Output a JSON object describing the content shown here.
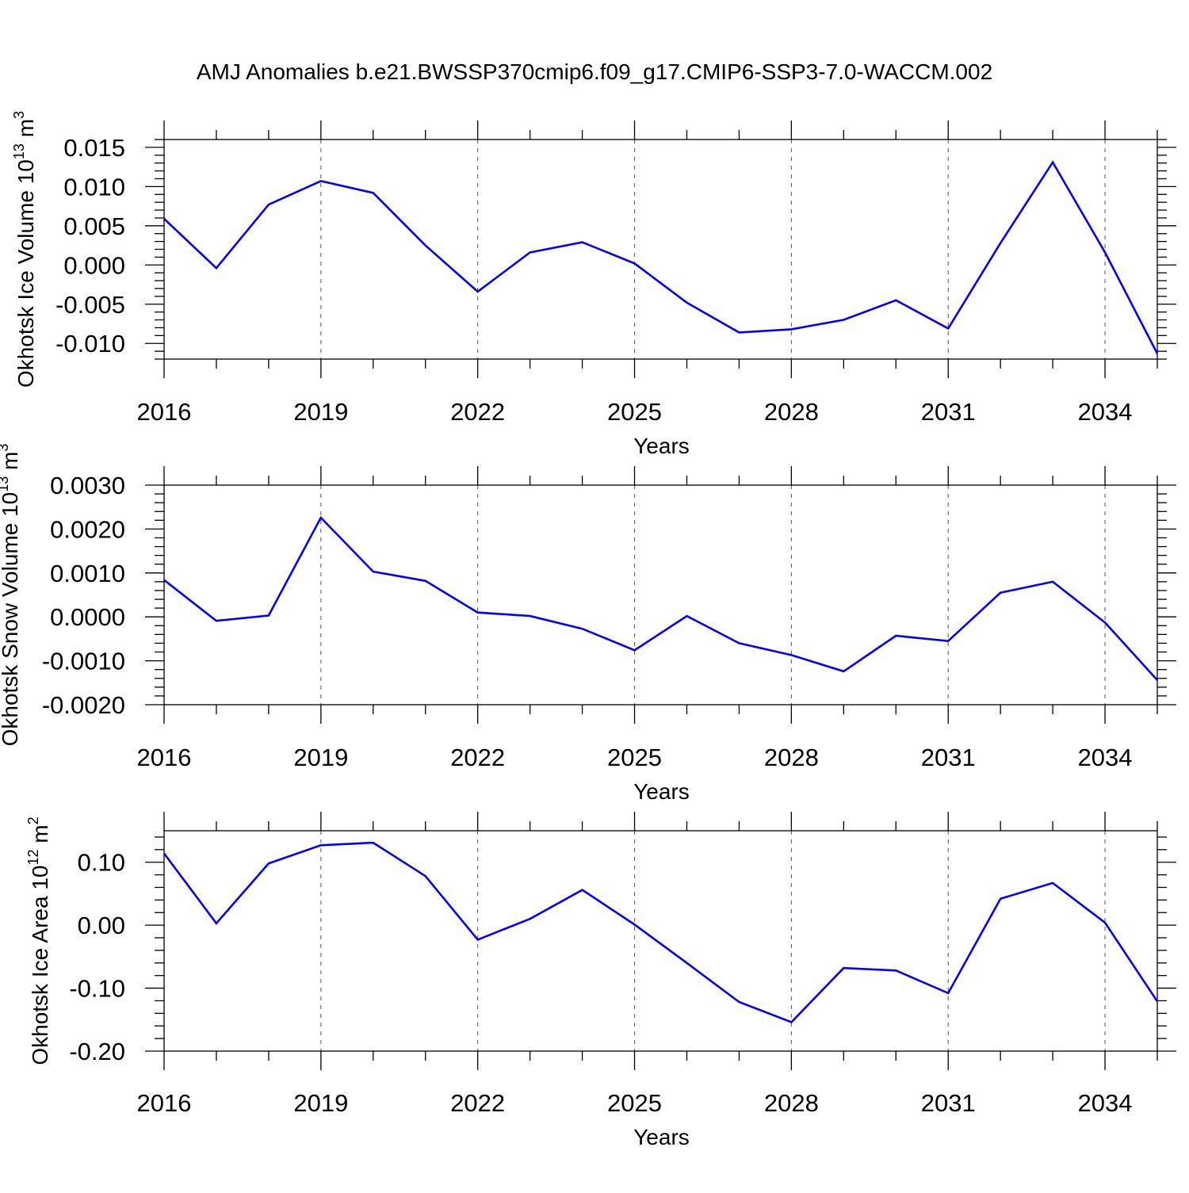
{
  "title": "AMJ Anomalies b.e21.BWSSP370cmip6.f09_g17.CMIP6-SSP3-7.0-WACCM.002",
  "colors": {
    "series": "#0000ff",
    "axis": "#000000",
    "grid": "#555555"
  },
  "chart_data": [
    {
      "type": "line",
      "title": "",
      "xlabel": "Years",
      "ylabel": {
        "prefix": "Okhotsk Ice Volume 10",
        "exponent": "13",
        "unit": " m",
        "unit_exponent": "3"
      },
      "xlim": [
        2016,
        2035
      ],
      "ylim": [
        -0.012,
        0.016
      ],
      "x_ticks": [
        2016,
        2019,
        2022,
        2025,
        2028,
        2031,
        2034
      ],
      "x_tick_labels": [
        "2016",
        "2019",
        "2022",
        "2025",
        "2028",
        "2031",
        "2034"
      ],
      "y_ticks": [
        0.015,
        0.01,
        0.005,
        0.0,
        -0.005,
        -0.01
      ],
      "y_tick_labels": [
        "0.015",
        "0.010",
        "0.005",
        "0.000",
        "-0.005",
        "-0.010"
      ],
      "grid": "dashed vertical at major x ticks",
      "series": [
        {
          "name": "Okhotsk Ice Volume",
          "x": [
            2016,
            2017,
            2018,
            2019,
            2020,
            2021,
            2022,
            2023,
            2024,
            2025,
            2026,
            2027,
            2028,
            2029,
            2030,
            2031,
            2032,
            2033,
            2034,
            2035
          ],
          "values": [
            0.0059,
            -0.0004,
            0.0077,
            0.0107,
            0.0092,
            0.0025,
            -0.0034,
            0.0016,
            0.0029,
            0.0002,
            -0.0048,
            -0.0086,
            -0.0082,
            -0.007,
            -0.0045,
            -0.0081,
            0.0028,
            0.0131,
            0.0016,
            -0.0113
          ]
        }
      ]
    },
    {
      "type": "line",
      "title": "",
      "xlabel": "Years",
      "ylabel": {
        "prefix": "Okhotsk Snow Volume 10",
        "exponent": "13",
        "unit": " m",
        "unit_exponent": "3"
      },
      "xlim": [
        2016,
        2035
      ],
      "ylim": [
        -0.002,
        0.003
      ],
      "x_ticks": [
        2016,
        2019,
        2022,
        2025,
        2028,
        2031,
        2034
      ],
      "x_tick_labels": [
        "2016",
        "2019",
        "2022",
        "2025",
        "2028",
        "2031",
        "2034"
      ],
      "y_ticks": [
        0.003,
        0.002,
        0.001,
        0.0,
        -0.001,
        -0.002
      ],
      "y_tick_labels": [
        "0.0030",
        "0.0020",
        "0.0010",
        "0.0000",
        "-0.0010",
        "-0.0020"
      ],
      "grid": "dashed vertical at major x ticks",
      "series": [
        {
          "name": "Okhotsk Snow Volume",
          "x": [
            2016,
            2017,
            2018,
            2019,
            2020,
            2021,
            2022,
            2023,
            2024,
            2025,
            2026,
            2027,
            2028,
            2029,
            2030,
            2031,
            2032,
            2033,
            2034,
            2035
          ],
          "values": [
            0.00084,
            -9e-05,
            3e-05,
            0.00226,
            0.00103,
            0.00082,
            0.0001,
            2e-05,
            -0.00027,
            -0.00076,
            2e-05,
            -0.0006,
            -0.00087,
            -0.00124,
            -0.00043,
            -0.00055,
            0.00055,
            0.0008,
            -0.00013,
            -0.00144
          ]
        }
      ]
    },
    {
      "type": "line",
      "title": "",
      "xlabel": "Years",
      "ylabel": {
        "prefix": "Okhotsk Ice Area 10",
        "exponent": "12",
        "unit": " m",
        "unit_exponent": "2"
      },
      "xlim": [
        2016,
        2035
      ],
      "ylim": [
        -0.2,
        0.15
      ],
      "x_ticks": [
        2016,
        2019,
        2022,
        2025,
        2028,
        2031,
        2034
      ],
      "x_tick_labels": [
        "2016",
        "2019",
        "2022",
        "2025",
        "2028",
        "2031",
        "2034"
      ],
      "y_ticks": [
        0.1,
        0.0,
        -0.1,
        -0.2
      ],
      "y_tick_labels": [
        "0.10",
        "0.00",
        "-0.10",
        "-0.20"
      ],
      "grid": "dashed vertical at major x ticks",
      "series": [
        {
          "name": "Okhotsk Ice Area",
          "x": [
            2016,
            2017,
            2018,
            2019,
            2020,
            2021,
            2022,
            2023,
            2024,
            2025,
            2026,
            2027,
            2028,
            2029,
            2030,
            2031,
            2032,
            2033,
            2034,
            2035
          ],
          "values": [
            0.114,
            0.003,
            0.098,
            0.127,
            0.131,
            0.078,
            -0.023,
            0.01,
            0.056,
            0.001,
            -0.06,
            -0.122,
            -0.154,
            -0.068,
            -0.072,
            -0.108,
            0.042,
            0.067,
            0.004,
            -0.121
          ]
        }
      ]
    }
  ]
}
